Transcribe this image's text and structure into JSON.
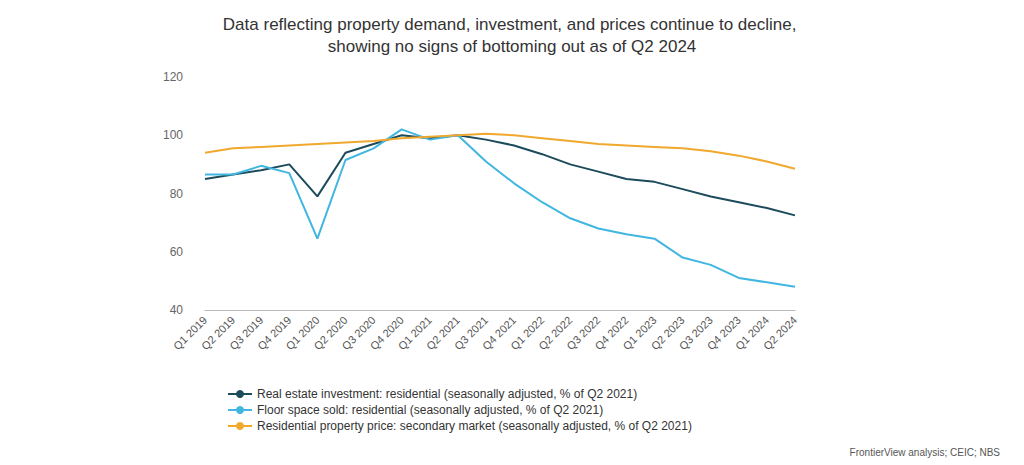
{
  "chart_data": {
    "type": "line",
    "title": "Data reflecting property demand, investment, and prices continue to decline, showing no signs of bottoming out as of Q2 2024",
    "source": "FrontierView analysis; CEIC; NBS",
    "categories": [
      "Q1 2019",
      "Q2 2019",
      "Q3 2019",
      "Q4 2019",
      "Q1 2020",
      "Q2 2020",
      "Q3 2020",
      "Q4 2020",
      "Q1 2021",
      "Q2 2021",
      "Q3 2021",
      "Q4 2021",
      "Q1 2022",
      "Q2 2022",
      "Q3 2022",
      "Q4 2022",
      "Q1 2023",
      "Q2 2023",
      "Q3 2023",
      "Q4 2023",
      "Q1 2024",
      "Q2 2024"
    ],
    "series": [
      {
        "name": "Real estate investment: residential (seasonally adjusted, % of Q2 2021)",
        "color": "#1c4b5b",
        "values": [
          85,
          86.5,
          88,
          90,
          79,
          94,
          97,
          100,
          99,
          100,
          98.5,
          96.5,
          93.5,
          90,
          87.5,
          85,
          84,
          81.5,
          79,
          77,
          75,
          72.5
        ]
      },
      {
        "name": "Floor space sold: residential (seasonally adjusted, % of Q2 2021)",
        "color": "#41b6e0",
        "values": [
          86.5,
          86.5,
          89.5,
          87,
          64.5,
          91.5,
          95.5,
          102,
          98.5,
          100,
          91,
          83.5,
          77,
          71.5,
          68,
          66,
          64.5,
          58,
          55.5,
          51,
          49.5,
          48
        ]
      },
      {
        "name": "Residential property price: secondary market (seasonally adjusted, % of Q2 2021)",
        "color": "#f0a92e",
        "values": [
          94,
          95.5,
          96,
          96.5,
          97,
          97.5,
          98,
          99,
          99.5,
          100,
          100.5,
          100,
          99,
          98,
          97,
          96.5,
          96,
          95.5,
          94.5,
          93,
          91,
          88.5
        ]
      }
    ],
    "ylim": [
      40,
      120
    ],
    "yticks": [
      40,
      60,
      80,
      100,
      120
    ],
    "grid": false,
    "legend": "bottom left"
  }
}
